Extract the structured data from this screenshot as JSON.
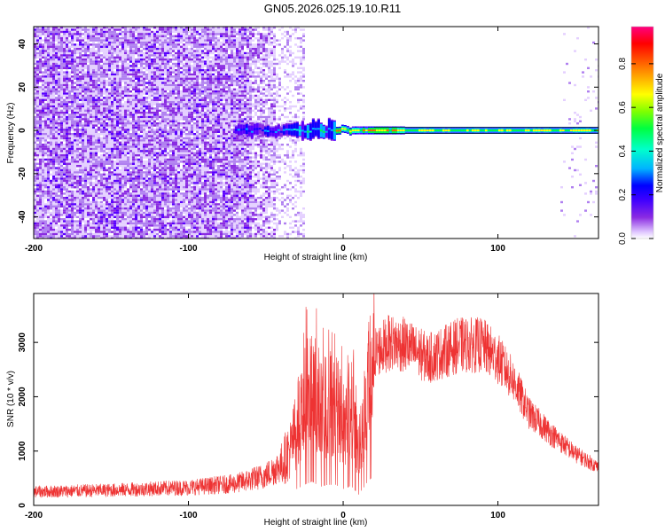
{
  "title": "GN05.2026.025.19.10.R11",
  "chart_data": [
    {
      "type": "heatmap",
      "xlabel": "Height of straight line (km)",
      "ylabel": "Frequency (Hz)",
      "xlim": [
        -200,
        165
      ],
      "ylim": [
        -50,
        48
      ],
      "xticks": [
        -200,
        -100,
        0,
        100
      ],
      "yticks": [
        40,
        20,
        0,
        -20,
        -40
      ],
      "colorbar": {
        "label": "Normalized spectral amplitude",
        "range": [
          0,
          0.97
        ],
        "ticks": [
          0.0,
          0.2,
          0.4,
          0.6,
          0.8
        ],
        "colormap": [
          "#ffffff",
          "#e0c8ff",
          "#8a2be2",
          "#4000ff",
          "#0000ff",
          "#00b4ff",
          "#00ffcc",
          "#00ff40",
          "#80ff00",
          "#ffff00",
          "#ff8000",
          "#ff0000",
          "#ff0080"
        ]
      },
      "features": {
        "noise_region_x": [
          -200,
          -25
        ],
        "dense_noise_x": [
          -200,
          -60
        ],
        "signal_start_x": -70,
        "signal_center_freq_hz": 0,
        "peak_region_x": [
          -5,
          30
        ],
        "sparse_right_edge_x": [
          140,
          165
        ]
      }
    },
    {
      "type": "line",
      "xlabel": "Height of straight line (km)",
      "ylabel": "SNR (10 * v/v)",
      "xlim": [
        -200,
        165
      ],
      "ylim": [
        0,
        3900
      ],
      "xticks": [
        -200,
        -100,
        0,
        100
      ],
      "yticks": [
        0,
        1000,
        2000,
        3000
      ],
      "color": "#ee3333",
      "envelope": [
        {
          "x": -200,
          "y": 250
        },
        {
          "x": -150,
          "y": 280
        },
        {
          "x": -100,
          "y": 330
        },
        {
          "x": -70,
          "y": 400
        },
        {
          "x": -50,
          "y": 550
        },
        {
          "x": -40,
          "y": 750
        },
        {
          "x": -33,
          "y": 1100
        },
        {
          "x": -30,
          "y": 1500
        },
        {
          "x": -25,
          "y": 1900
        },
        {
          "x": -20,
          "y": 2200
        },
        {
          "x": -15,
          "y": 1700
        },
        {
          "x": -10,
          "y": 1900
        },
        {
          "x": -5,
          "y": 1900
        },
        {
          "x": 0,
          "y": 1500
        },
        {
          "x": 5,
          "y": 1800
        },
        {
          "x": 10,
          "y": 1000
        },
        {
          "x": 15,
          "y": 2000
        },
        {
          "x": 20,
          "y": 2800
        },
        {
          "x": 30,
          "y": 3000
        },
        {
          "x": 40,
          "y": 2950
        },
        {
          "x": 55,
          "y": 2700
        },
        {
          "x": 75,
          "y": 2950
        },
        {
          "x": 90,
          "y": 2950
        },
        {
          "x": 100,
          "y": 2700
        },
        {
          "x": 110,
          "y": 2300
        },
        {
          "x": 120,
          "y": 1700
        },
        {
          "x": 135,
          "y": 1300
        },
        {
          "x": 150,
          "y": 950
        },
        {
          "x": 165,
          "y": 700
        }
      ]
    }
  ]
}
